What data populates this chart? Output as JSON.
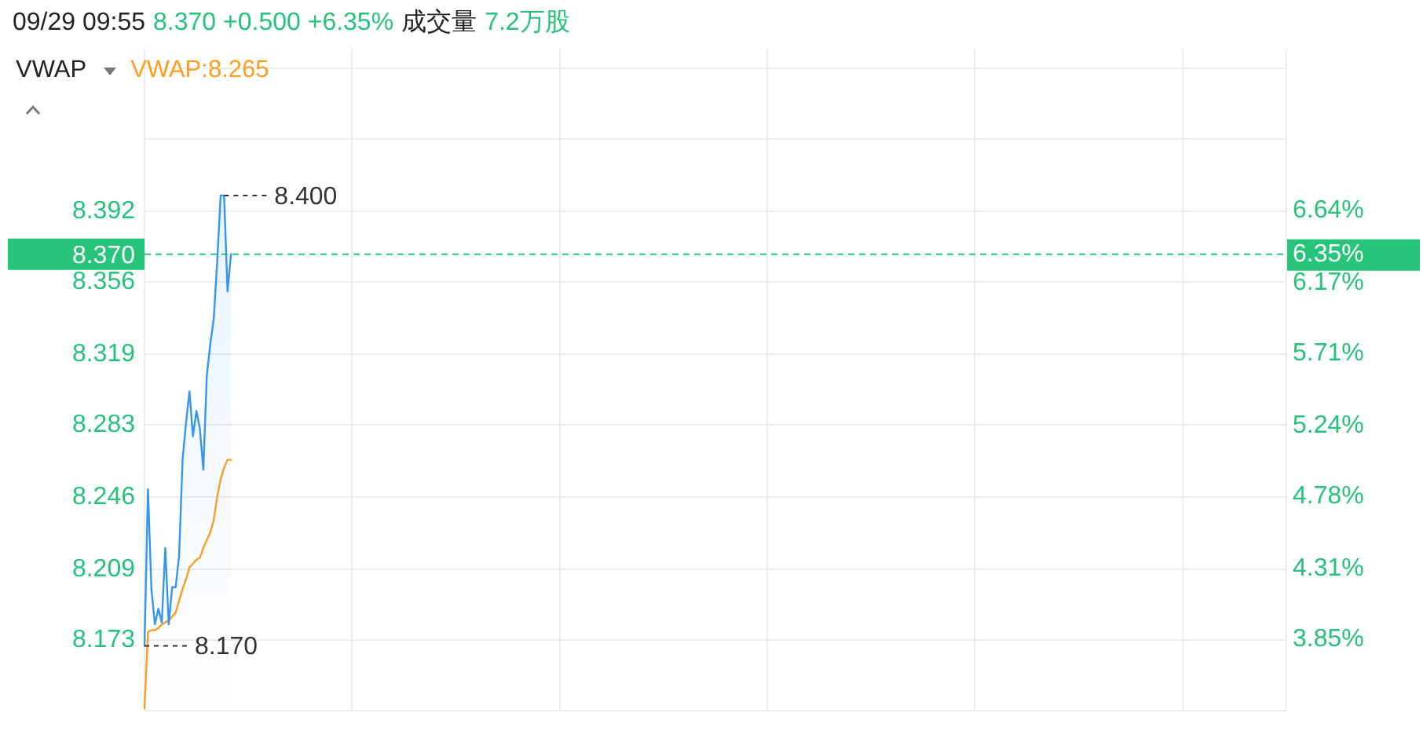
{
  "chart_data": {
    "type": "line",
    "title": "09/29 09:55",
    "subtitle": "8.370 +0.500 +6.35%",
    "annotations": [
      "成交量",
      "7.2万股"
    ],
    "legend": "top left",
    "legend_title": "VWAP",
    "grid": true,
    "categories": [
      null,
      null,
      null,
      null,
      null,
      null,
      null,
      null,
      null,
      null,
      null,
      null,
      null,
      null,
      null,
      null,
      null,
      null,
      null,
      null,
      null,
      null,
      null,
      null,
      null,
      null,
      null,
      null,
      null,
      null,
      null,
      null,
      null,
      null,
      null,
      null,
      null,
      null,
      null,
      null,
      null,
      null,
      null,
      null,
      null,
      null,
      null,
      null,
      null,
      null,
      null,
      null,
      null,
      null,
      null,
      null,
      null,
      null,
      null,
      null,
      null,
      null,
      null,
      null,
      null,
      null,
      null,
      null,
      null,
      null,
      null,
      null,
      null,
      null,
      null,
      null,
      null,
      null,
      null,
      null,
      null,
      null,
      null,
      null,
      null,
      null,
      null,
      null,
      null,
      null,
      null,
      null,
      null,
      null,
      null,
      null,
      null,
      null,
      null,
      null,
      null,
      null,
      null,
      null,
      null,
      null,
      null,
      null,
      null,
      null,
      null,
      null,
      null,
      null,
      null,
      null,
      null,
      null,
      null,
      null,
      null,
      null,
      null,
      null,
      null,
      null,
      null,
      null,
      null,
      null,
      null,
      null,
      null,
      null,
      null,
      null,
      null,
      null,
      null,
      null,
      null,
      null,
      null,
      null,
      null,
      null,
      null,
      null,
      null,
      null,
      null,
      null,
      null,
      null,
      null,
      null,
      null,
      null,
      null,
      null,
      null,
      null,
      null,
      null,
      null,
      null,
      null,
      null,
      null,
      null,
      null,
      null,
      null,
      null,
      null,
      null,
      null,
      null,
      null,
      null,
      null,
      null,
      null,
      null,
      null,
      null,
      null,
      null,
      null,
      null,
      null,
      null,
      null,
      null,
      null,
      null,
      null,
      null,
      null,
      null,
      null,
      null,
      null,
      null,
      null,
      null,
      null,
      null,
      null,
      null,
      null,
      null,
      null,
      null,
      null,
      null,
      null,
      null,
      null,
      null,
      null,
      null,
      null,
      null,
      null,
      null,
      null,
      null,
      null,
      null,
      null,
      null,
      null,
      null,
      null,
      null,
      null,
      null,
      null,
      null,
      null,
      null,
      null,
      null,
      null,
      null,
      null,
      null,
      null,
      null,
      null,
      null,
      null,
      null,
      null,
      null,
      null,
      null,
      null,
      null,
      null,
      null,
      null,
      null,
      null,
      null,
      null,
      null,
      null,
      null,
      null,
      null,
      null,
      null,
      null,
      null,
      null,
      null,
      null,
      null,
      null,
      null,
      null,
      null,
      null,
      null,
      null,
      null,
      null,
      null,
      null,
      null,
      null,
      null,
      null,
      null,
      null,
      null,
      null,
      null,
      null,
      null,
      null,
      null,
      null,
      null,
      null,
      null,
      null,
      null,
      null,
      null,
      null,
      null,
      null,
      null,
      null,
      null,
      null,
      null,
      null,
      null,
      null,
      null,
      null,
      null,
      null,
      null,
      null,
      null,
      null
    ],
    "series": [
      {
        "type": "area",
        "color": "#3496f0",
        "values": [
          8.17,
          8.25,
          8.199,
          8.181,
          8.189,
          8.182,
          8.22,
          8.181,
          8.2,
          8.2,
          8.216,
          8.265,
          8.284,
          8.3,
          8.277,
          8.29,
          8.281,
          8.26,
          8.308,
          8.324,
          8.337,
          8.366,
          8.4,
          8.4,
          8.351,
          8.37,
          null,
          null,
          null,
          null,
          null,
          null,
          null,
          null,
          null,
          null,
          null,
          null,
          null,
          null,
          null,
          null,
          null,
          null,
          null,
          null,
          null,
          null,
          null,
          null,
          null,
          null,
          null,
          null,
          null,
          null,
          null,
          null,
          null,
          null,
          null,
          null,
          null,
          null,
          null,
          null,
          null,
          null,
          null,
          null,
          null,
          null,
          null,
          null,
          null,
          null,
          null,
          null,
          null,
          null,
          null,
          null,
          null,
          null,
          null,
          null,
          null,
          null,
          null,
          null,
          null,
          null,
          null,
          null,
          null,
          null,
          null,
          null,
          null,
          null,
          null,
          null,
          null,
          null,
          null,
          null,
          null,
          null,
          null,
          null,
          null,
          null,
          null,
          null,
          null,
          null,
          null,
          null,
          null,
          null,
          null,
          null,
          null,
          null,
          null,
          null,
          null,
          null,
          null,
          null,
          null,
          null,
          null,
          null,
          null,
          null,
          null,
          null,
          null,
          null,
          null,
          null,
          null,
          null,
          null,
          null,
          null,
          null,
          null,
          null,
          null,
          null,
          null,
          null,
          null,
          null,
          null,
          null,
          null,
          null,
          null,
          null,
          null,
          null,
          null,
          null,
          null,
          null,
          null,
          null,
          null,
          null,
          null,
          null,
          null,
          null,
          null,
          null,
          null,
          null,
          null,
          null,
          null,
          null,
          null,
          null,
          null,
          null,
          null,
          null,
          null,
          null,
          null,
          null,
          null,
          null,
          null,
          null,
          null,
          null,
          null,
          null,
          null,
          null,
          null,
          null,
          null,
          null,
          null,
          null,
          null,
          null,
          null,
          null,
          null,
          null,
          null,
          null,
          null,
          null,
          null,
          null,
          null,
          null,
          null,
          null,
          null,
          null,
          null,
          null,
          null,
          null,
          null,
          null,
          null,
          null,
          null,
          null,
          null,
          null,
          null,
          null,
          null,
          null,
          null,
          null,
          null,
          null,
          null,
          null,
          null,
          null,
          null,
          null,
          null,
          null,
          null,
          null,
          null,
          null,
          null,
          null,
          null,
          null,
          null,
          null,
          null,
          null,
          null,
          null,
          null,
          null,
          null,
          null,
          null,
          null,
          null,
          null,
          null,
          null,
          null,
          null,
          null,
          null,
          null,
          null,
          null,
          null,
          null,
          null,
          null,
          null,
          null,
          null,
          null,
          null,
          null,
          null,
          null,
          null,
          null,
          null,
          null,
          null,
          null,
          null,
          null,
          null,
          null,
          null,
          null,
          null,
          null,
          null,
          null,
          null,
          null,
          null,
          null,
          null,
          null,
          null,
          null,
          null,
          null,
          null,
          null,
          null,
          null,
          null,
          null
        ],
        "value_labels": [
          "8.170",
          null,
          null,
          null,
          null,
          null,
          null,
          null,
          null,
          null,
          null,
          null,
          null,
          null,
          null,
          null,
          null,
          null,
          null,
          null,
          null,
          null,
          null,
          "8.400",
          null,
          null,
          null,
          null,
          null,
          null,
          null,
          null,
          null,
          null,
          null,
          null,
          null,
          null,
          null,
          null,
          null,
          null,
          null,
          null,
          null,
          null,
          null,
          null,
          null,
          null,
          null,
          null,
          null,
          null,
          null,
          null,
          null,
          null,
          null,
          null,
          null,
          null,
          null,
          null,
          null,
          null,
          null,
          null,
          null,
          null,
          null,
          null,
          null,
          null,
          null,
          null,
          null,
          null,
          null,
          null,
          null,
          null,
          null,
          null,
          null,
          null,
          null,
          null,
          null,
          null,
          null,
          null,
          null,
          null,
          null,
          null,
          null,
          null,
          null,
          null,
          null,
          null,
          null,
          null,
          null,
          null,
          null,
          null,
          null,
          null,
          null,
          null,
          null,
          null,
          null,
          null,
          null,
          null,
          null,
          null,
          null,
          null,
          null,
          null,
          null,
          null,
          null,
          null,
          null,
          null,
          null,
          null,
          null,
          null,
          null,
          null,
          null,
          null,
          null,
          null,
          null,
          null,
          null,
          null,
          null,
          null,
          null,
          null,
          null,
          null,
          null,
          null,
          null,
          null,
          null,
          null,
          null,
          null,
          null,
          null,
          null,
          null,
          null,
          null,
          null,
          null,
          null,
          null,
          null,
          null,
          null,
          null,
          null,
          null,
          null,
          null,
          null,
          null,
          null,
          null,
          null,
          null,
          null,
          null,
          null,
          null,
          null,
          null,
          null,
          null,
          null,
          null,
          null,
          null,
          null,
          null,
          null,
          null,
          null,
          null,
          null,
          null,
          null,
          null,
          null,
          null,
          null,
          null,
          null,
          null,
          null,
          null,
          null,
          null,
          null,
          null,
          null,
          null,
          null,
          null,
          null,
          null,
          null,
          null,
          null,
          null,
          null,
          null,
          null,
          null,
          null,
          null,
          null,
          null,
          null,
          null,
          null,
          null,
          null,
          null,
          null,
          null,
          null,
          null,
          null,
          null,
          null,
          null,
          null,
          null,
          null,
          null,
          null,
          null,
          null,
          null,
          null,
          null,
          null,
          null,
          null,
          null,
          null,
          null,
          null,
          null,
          null,
          null,
          null,
          null,
          null,
          null,
          null,
          null,
          null,
          null,
          null,
          null,
          null,
          null,
          null,
          null,
          null,
          null,
          null,
          null,
          null,
          null,
          null,
          null,
          null,
          null,
          null,
          null,
          null,
          null,
          null,
          null,
          null,
          null,
          null,
          null,
          null,
          null,
          null,
          null,
          null,
          null,
          null,
          null,
          null,
          null,
          null,
          null,
          null,
          null,
          null,
          null,
          null,
          null,
          null,
          null,
          null,
          null,
          null,
          null,
          null,
          null,
          null,
          null,
          null
        ]
      },
      {
        "name": "VWAP:8.265",
        "color": "#ff9d1f",
        "values": [
          8.138,
          8.177,
          8.178,
          8.178,
          8.179,
          8.181,
          8.182,
          8.183,
          8.185,
          8.187,
          8.193,
          8.199,
          8.204,
          8.21,
          8.212,
          8.214,
          8.215,
          8.22,
          8.224,
          8.228,
          8.234,
          8.246,
          8.255,
          8.261,
          8.265,
          8.265,
          null,
          null,
          null,
          null,
          null,
          null,
          null,
          null,
          null,
          null,
          null,
          null,
          null,
          null,
          null,
          null,
          null,
          null,
          null,
          null,
          null,
          null,
          null,
          null,
          null,
          null,
          null,
          null,
          null,
          null,
          null,
          null,
          null,
          null,
          null,
          null,
          null,
          null,
          null,
          null,
          null,
          null,
          null,
          null,
          null,
          null,
          null,
          null,
          null,
          null,
          null,
          null,
          null,
          null,
          null,
          null,
          null,
          null,
          null,
          null,
          null,
          null,
          null,
          null,
          null,
          null,
          null,
          null,
          null,
          null,
          null,
          null,
          null,
          null,
          null,
          null,
          null,
          null,
          null,
          null,
          null,
          null,
          null,
          null,
          null,
          null,
          null,
          null,
          null,
          null,
          null,
          null,
          null,
          null,
          null,
          null,
          null,
          null,
          null,
          null,
          null,
          null,
          null,
          null,
          null,
          null,
          null,
          null,
          null,
          null,
          null,
          null,
          null,
          null,
          null,
          null,
          null,
          null,
          null,
          null,
          null,
          null,
          null,
          null,
          null,
          null,
          null,
          null,
          null,
          null,
          null,
          null,
          null,
          null,
          null,
          null,
          null,
          null,
          null,
          null,
          null,
          null,
          null,
          null,
          null,
          null,
          null,
          null,
          null,
          null,
          null,
          null,
          null,
          null,
          null,
          null,
          null,
          null,
          null,
          null,
          null,
          null,
          null,
          null,
          null,
          null,
          null,
          null,
          null,
          null,
          null,
          null,
          null,
          null,
          null,
          null,
          null,
          null,
          null,
          null,
          null,
          null,
          null,
          null,
          null,
          null,
          null,
          null,
          null,
          null,
          null,
          null,
          null,
          null,
          null,
          null,
          null,
          null,
          null,
          null,
          null,
          null,
          null,
          null,
          null,
          null,
          null,
          null,
          null,
          null,
          null,
          null,
          null,
          null,
          null,
          null,
          null,
          null,
          null,
          null,
          null,
          null,
          null,
          null,
          null,
          null,
          null,
          null,
          null,
          null,
          null,
          null,
          null,
          null,
          null,
          null,
          null,
          null,
          null,
          null,
          null,
          null,
          null,
          null,
          null,
          null,
          null,
          null,
          null,
          null,
          null,
          null,
          null,
          null,
          null,
          null,
          null,
          null,
          null,
          null,
          null,
          null,
          null,
          null,
          null,
          null,
          null,
          null,
          null,
          null,
          null,
          null,
          null,
          null,
          null,
          null,
          null,
          null,
          null,
          null,
          null,
          null,
          null,
          null,
          null,
          null,
          null,
          null,
          null,
          null,
          null,
          null,
          null,
          null,
          null,
          null,
          null,
          null,
          null,
          null,
          null,
          null,
          null,
          null,
          null
        ]
      }
    ],
    "ylim": [
      8.137,
      8.475
    ],
    "yticks": [
      {
        "value": 8.137,
        "label": null
      },
      8.173,
      8.209,
      8.246,
      8.283,
      8.319,
      8.356,
      8.392,
      {
        "value": 8.429,
        "label": null
      },
      {
        "value": 8.465,
        "label": null
      }
    ],
    "y2lim": [
      3.39,
      7.69
    ],
    "y2ticks": [
      {
        "value": 3.85,
        "label": "3.85%"
      },
      {
        "value": 4.31,
        "label": "4.31%"
      },
      {
        "value": 4.78,
        "label": "4.78%"
      },
      {
        "value": 5.24,
        "label": "5.24%"
      },
      {
        "value": 5.71,
        "label": "5.71%"
      },
      {
        "value": 6.17,
        "label": "6.17%"
      },
      {
        "value": 6.35,
        "label": "6.35%"
      },
      {
        "value": 6.64,
        "label": "6.64%"
      }
    ],
    "ref_lines": [
      {
        "axis": "y",
        "value": 8.37,
        "label": "8.370",
        "color": "#27c57a",
        "line_style": "dashed"
      }
    ]
  }
}
